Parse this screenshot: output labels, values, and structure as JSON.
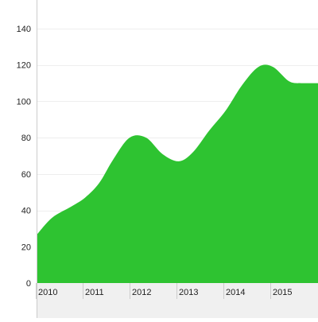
{
  "chart_data": {
    "type": "area",
    "x": [
      "2010",
      "2010.5",
      "2011",
      "2011.5",
      "2012",
      "2012.5",
      "2013",
      "2013.5",
      "2014",
      "2014.5",
      "2015",
      "2015.5"
    ],
    "x_tick_labels": [
      "2010",
      "2011",
      "2012",
      "2013",
      "2014",
      "2015"
    ],
    "series": [
      {
        "x": [
          2009.95,
          2010.3,
          2010.7,
          2011.0,
          2011.3,
          2011.6,
          2011.95,
          2012.3,
          2012.65,
          2013.0,
          2013.3,
          2013.65,
          2014.0,
          2014.35,
          2014.7,
          2015.0,
          2015.35,
          2015.6
        ],
        "values": [
          27,
          36,
          42,
          47,
          55,
          68,
          80,
          80,
          71,
          67,
          72,
          84,
          95,
          109,
          119,
          119,
          111,
          110
        ]
      }
    ],
    "ylim": [
      0,
      140
    ],
    "y_ticks": [
      0,
      20,
      40,
      60,
      80,
      100,
      120,
      140
    ],
    "colors": {
      "area": "#2ec331",
      "grid": "#eeeeee",
      "axis": "#cccccc",
      "xaxis_bg": "#f0f0f0"
    },
    "grid": true,
    "legend": "none"
  }
}
